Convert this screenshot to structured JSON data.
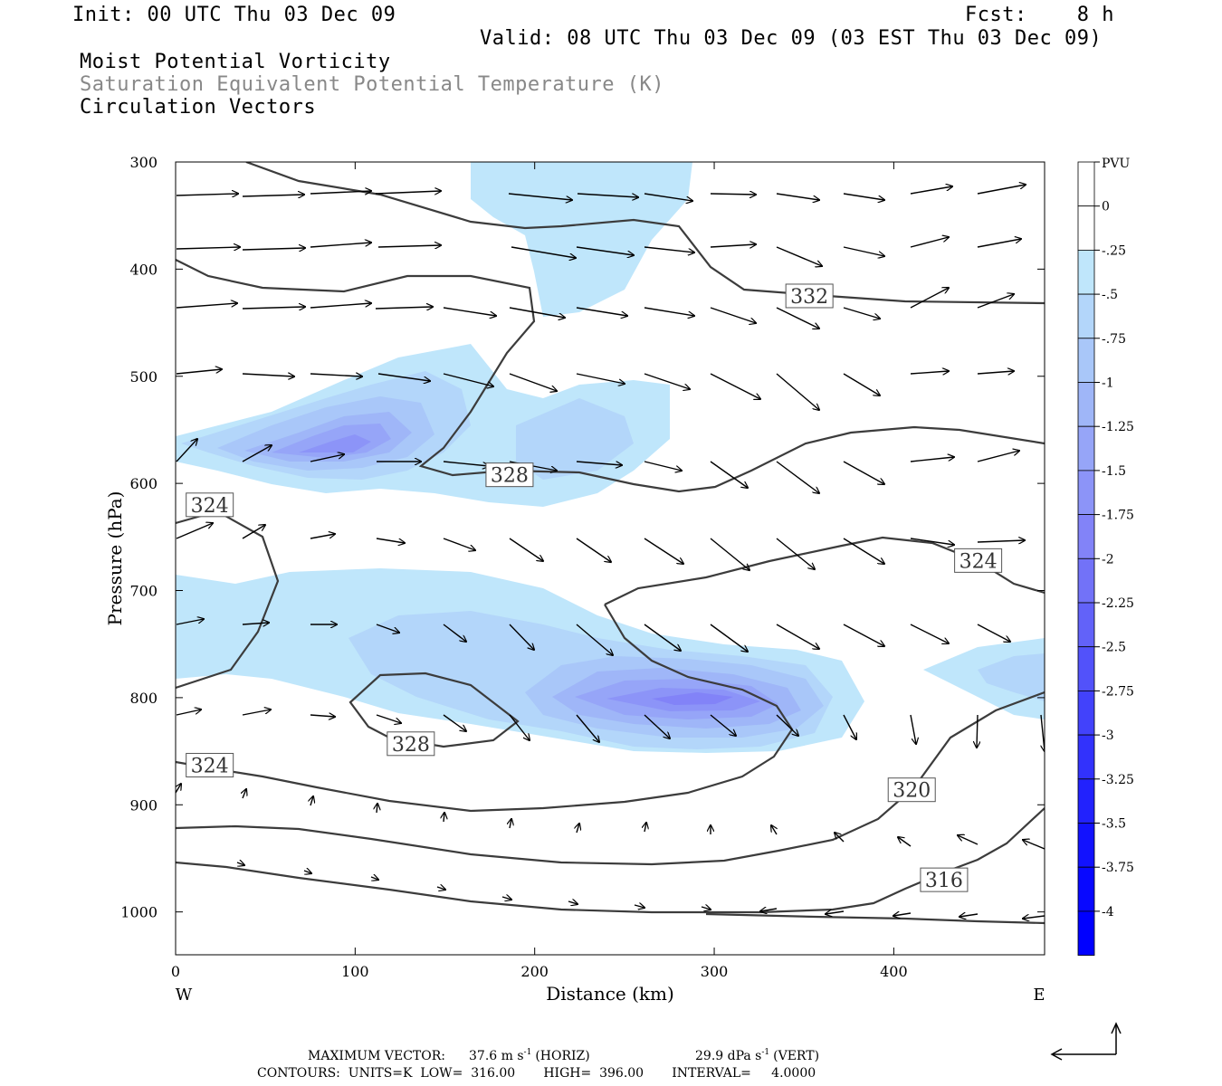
{
  "header": {
    "init": "Init: 00 UTC Thu 03 Dec 09",
    "fcst": "Fcst:    8 h",
    "valid": "Valid: 08 UTC Thu 03 Dec 09 (03 EST Thu 03 Dec 09)",
    "fields": [
      "Moist Potential Vorticity",
      "Saturation Equivalent Potential Temperature (K)",
      "Circulation Vectors"
    ]
  },
  "footer": {
    "max_label": "MAXIMUM VECTOR:",
    "horiz": "37.6 m s",
    "horiz_sup": "-1",
    "horiz_tag": "(HORIZ)",
    "vert": "29.9 dPa s",
    "vert_sup": "-1",
    "vert_tag": "(VERT)",
    "contours": "CONTOURS:  UNITS=K  LOW=  316.00       HIGH=  396.00       INTERVAL=     4.0000"
  },
  "colors": {
    "pv_0": "#ffffff",
    "pv_m025": "#bfe6fb",
    "pv_m05": "#b3d6fa",
    "pv_m075": "#a9c7f9",
    "pv_m1": "#9fb6f8",
    "pv_m125": "#96a5f8",
    "pv_m15": "#8c94f8",
    "pv_m175": "#8283f8",
    "pv_deep": "#0000ff",
    "contour": "#3c3c3c"
  },
  "chart_data": {
    "type": "heatmap",
    "title": "",
    "xlabel": "Distance (km)",
    "ylabel": "Pressure (hPa)",
    "xlim": [
      0,
      484
    ],
    "ylim": [
      1040,
      300
    ],
    "x_ticks": [
      "0",
      "100",
      "200",
      "300",
      "400"
    ],
    "y_ticks": [
      "300",
      "400",
      "500",
      "600",
      "700",
      "800",
      "900",
      "1000"
    ],
    "x_end_labels": {
      "left": "W",
      "right": "E"
    },
    "colorbar": {
      "title": "PVU",
      "levels": [
        "0",
        "-.25",
        "-.5",
        "-.75",
        "-1",
        "-1.25",
        "-1.5",
        "-1.75",
        "-2",
        "-2.25",
        "-2.5",
        "-2.75",
        "-3",
        "-3.25",
        "-3.5",
        "-3.75",
        "-4"
      ]
    },
    "contour_labels": [
      {
        "text": "332",
        "x": 353,
        "y": 425
      },
      {
        "text": "328",
        "x": 186,
        "y": 592
      },
      {
        "text": "324",
        "x": 19,
        "y": 620
      },
      {
        "text": "324",
        "x": 447,
        "y": 672
      },
      {
        "text": "328",
        "x": 131,
        "y": 843
      },
      {
        "text": "324",
        "x": 19,
        "y": 863
      },
      {
        "text": "320",
        "x": 410,
        "y": 886
      },
      {
        "text": "316",
        "x": 428,
        "y": 970
      }
    ]
  }
}
